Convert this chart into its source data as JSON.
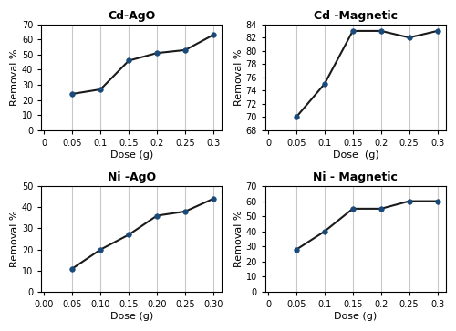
{
  "plots": [
    {
      "title": "Cd-AgO",
      "xlabel": "Dose (g)",
      "ylabel": "Removal %",
      "x": [
        0.05,
        0.1,
        0.15,
        0.2,
        0.25,
        0.3
      ],
      "y": [
        24,
        27,
        46,
        51,
        53,
        63
      ],
      "ylim": [
        0,
        70
      ],
      "yticks": [
        0,
        10,
        20,
        30,
        40,
        50,
        60,
        70
      ],
      "xticks": [
        0,
        0.05,
        0.1,
        0.15,
        0.2,
        0.25,
        0.3
      ],
      "xticklabels": [
        "0",
        "0.05",
        "0.1",
        "0.15",
        "0.2",
        "0.25",
        "0.3"
      ],
      "xlim": [
        -0.005,
        0.315
      ],
      "grid_x": [
        0.05,
        0.1,
        0.15,
        0.2,
        0.25,
        0.3
      ]
    },
    {
      "title": "Cd -Magnetic",
      "xlabel": "Dose  (g)",
      "ylabel": "Removal %",
      "x": [
        0.05,
        0.1,
        0.15,
        0.2,
        0.25,
        0.3
      ],
      "y": [
        70,
        75,
        83,
        83,
        82,
        83
      ],
      "ylim": [
        68,
        84
      ],
      "yticks": [
        68,
        70,
        72,
        74,
        76,
        78,
        80,
        82,
        84
      ],
      "xticks": [
        0,
        0.05,
        0.1,
        0.15,
        0.2,
        0.25,
        0.3
      ],
      "xticklabels": [
        "0",
        "0.05",
        "0.1",
        "0.15",
        "0.2",
        "0.25",
        "0.3"
      ],
      "xlim": [
        -0.005,
        0.315
      ],
      "grid_x": [
        0.05,
        0.1,
        0.15,
        0.2,
        0.25,
        0.3
      ]
    },
    {
      "title": "Ni -AgO",
      "xlabel": "Dose (g)",
      "ylabel": "Removal %",
      "x": [
        0.05,
        0.1,
        0.15,
        0.2,
        0.25,
        0.3
      ],
      "y": [
        11,
        20,
        27,
        36,
        38,
        44
      ],
      "ylim": [
        0,
        50
      ],
      "yticks": [
        0,
        10,
        20,
        30,
        40,
        50
      ],
      "xticks": [
        0.0,
        0.05,
        0.1,
        0.15,
        0.2,
        0.25,
        0.3
      ],
      "xticklabels": [
        "0.00",
        "0.05",
        "0.10",
        "0.15",
        "0.20",
        "0.25",
        "0.30"
      ],
      "xlim": [
        -0.005,
        0.315
      ],
      "grid_x": [
        0.05,
        0.1,
        0.15,
        0.2,
        0.25,
        0.3
      ]
    },
    {
      "title": "Ni - Magnetic",
      "xlabel": "Dose (g)",
      "ylabel": "Removal %",
      "x": [
        0.05,
        0.1,
        0.15,
        0.2,
        0.25,
        0.3
      ],
      "y": [
        28,
        40,
        55,
        55,
        60,
        60
      ],
      "ylim": [
        0,
        70
      ],
      "yticks": [
        0,
        10,
        20,
        30,
        40,
        50,
        60,
        70
      ],
      "xticks": [
        0,
        0.05,
        0.1,
        0.15,
        0.2,
        0.25,
        0.3
      ],
      "xticklabels": [
        "0",
        "0.05",
        "0.1",
        "0.15",
        "0.2",
        "0.25",
        "0.3"
      ],
      "xlim": [
        -0.005,
        0.315
      ],
      "grid_x": [
        0.05,
        0.1,
        0.15,
        0.2,
        0.25,
        0.3
      ]
    }
  ],
  "line_color": "#1a1a1a",
  "marker_color": "#1a4a7a",
  "marker_edge_color": "#1a4a7a",
  "marker": "o",
  "marker_size": 4,
  "line_width": 1.5,
  "title_fontsize": 9,
  "label_fontsize": 8,
  "tick_fontsize": 7,
  "grid_color": "#c8c8c8",
  "grid_linewidth": 0.8,
  "bg_color": "#ffffff"
}
